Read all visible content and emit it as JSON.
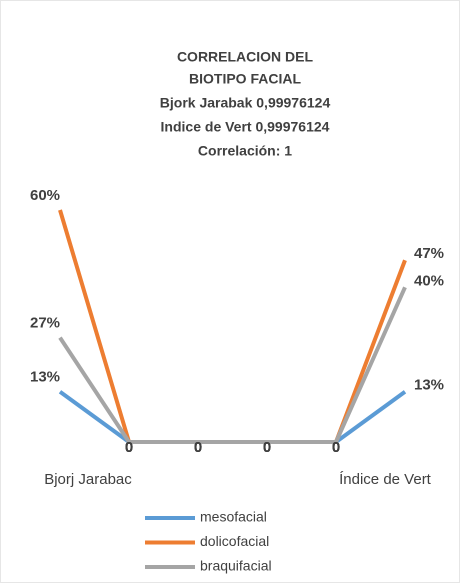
{
  "chart_data": {
    "type": "line",
    "title": [
      "CORRELACION DEL",
      "BIOTIPO FACIAL"
    ],
    "subtitle": [
      "Bjork Jarabak  0,99976124",
      "Indice de Vert 0,99976124",
      "Correlación: 1"
    ],
    "categories": [
      "Bjorj Jarabac",
      null,
      null,
      null,
      null,
      "Índice de Vert"
    ],
    "series": [
      {
        "name": "mesofacial",
        "color": "#5b9bd5",
        "values": [
          13,
          0,
          0,
          0,
          0,
          13
        ],
        "value_labels": [
          "13%",
          "0",
          "0",
          "0",
          "0",
          "13%"
        ]
      },
      {
        "name": "dolicofacial",
        "color": "#ed7d31",
        "values": [
          60,
          0,
          0,
          0,
          0,
          47
        ],
        "value_labels": [
          "60%",
          "0",
          "0",
          "0",
          "0",
          "47%"
        ]
      },
      {
        "name": "braquifacial",
        "color": "#a5a5a5",
        "values": [
          27,
          0,
          0,
          0,
          0,
          40
        ],
        "value_labels": [
          "27%",
          "0",
          "0",
          "0",
          "0",
          "40%"
        ]
      }
    ],
    "ylim": [
      0,
      60
    ],
    "grid": false
  }
}
